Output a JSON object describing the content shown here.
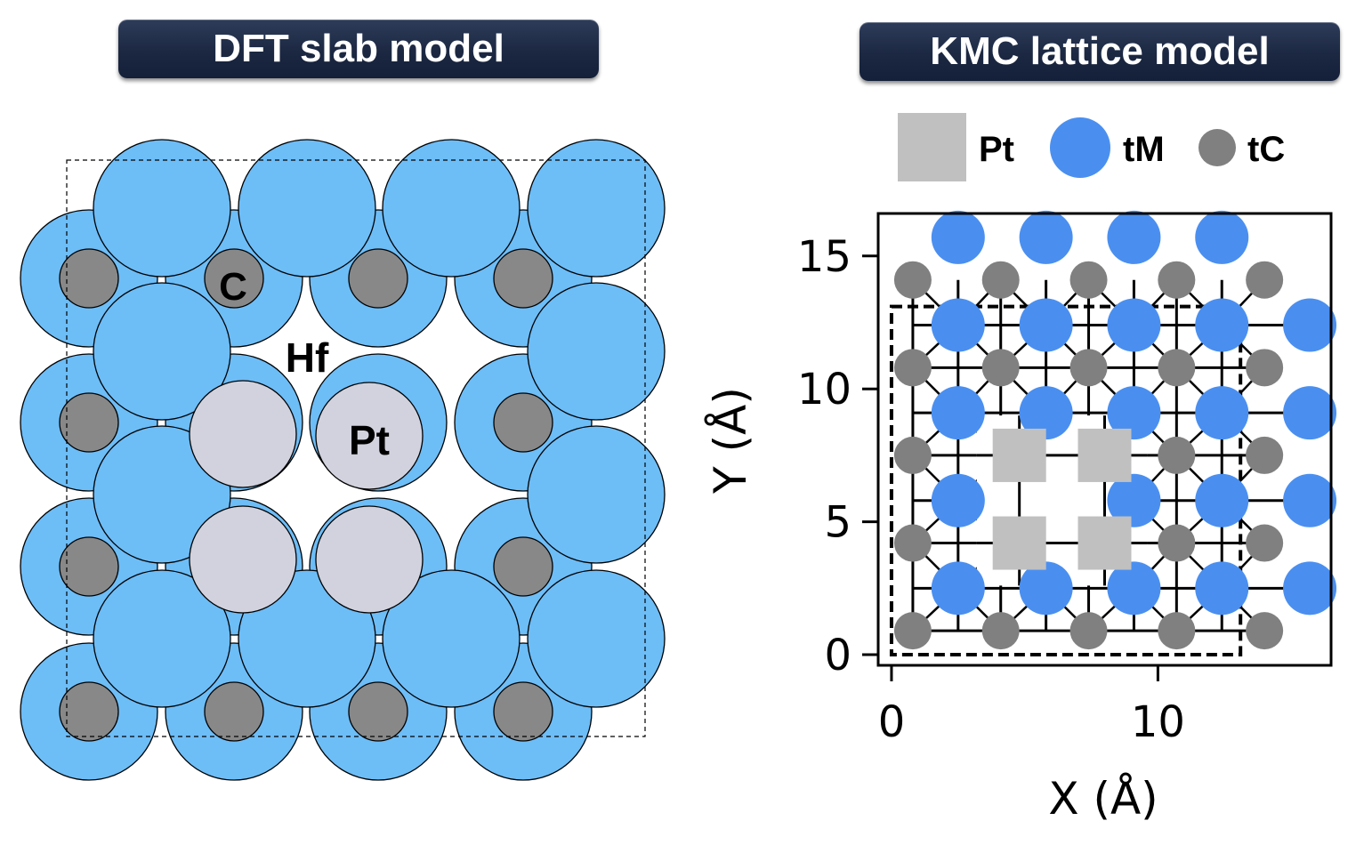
{
  "titles": {
    "left": "DFT slab model",
    "right": "KMC lattice model"
  },
  "slab": {
    "labels": {
      "c": "C",
      "hf": "Hf",
      "pt": "Pt"
    },
    "colors": {
      "hf": "#6dbdf7",
      "c": "#888888",
      "pt": "#d2d2de"
    }
  },
  "legend": {
    "items": [
      {
        "label": "Pt",
        "shape": "square",
        "color": "#c0c0c0"
      },
      {
        "label": "tM",
        "shape": "circle",
        "color": "#4a8ff0"
      },
      {
        "label": "tC",
        "shape": "circle",
        "color": "#808080"
      }
    ]
  },
  "chart_data": {
    "type": "scatter",
    "xlabel": "X (Å)",
    "ylabel": "Y (Å)",
    "xlim": [
      -0.5,
      16.5
    ],
    "ylim": [
      -0.4,
      16.6
    ],
    "xticks": [
      0,
      10
    ],
    "yticks": [
      0,
      5,
      10,
      15
    ],
    "series": [
      {
        "name": "tM",
        "color": "#4a8ff0",
        "marker": "circle",
        "points": [
          [
            2.5,
            15.7
          ],
          [
            5.8,
            15.7
          ],
          [
            9.1,
            15.7
          ],
          [
            12.4,
            15.7
          ],
          [
            2.5,
            12.4
          ],
          [
            5.8,
            12.4
          ],
          [
            9.1,
            12.4
          ],
          [
            12.4,
            12.4
          ],
          [
            15.7,
            12.4
          ],
          [
            2.5,
            9.1
          ],
          [
            5.8,
            9.1
          ],
          [
            9.1,
            9.1
          ],
          [
            12.4,
            9.1
          ],
          [
            15.7,
            9.1
          ],
          [
            2.5,
            5.8
          ],
          [
            9.1,
            5.8
          ],
          [
            12.4,
            5.8
          ],
          [
            15.7,
            5.8
          ],
          [
            2.5,
            2.5
          ],
          [
            5.8,
            2.5
          ],
          [
            9.1,
            2.5
          ],
          [
            12.4,
            2.5
          ],
          [
            15.7,
            2.5
          ]
        ]
      },
      {
        "name": "tC",
        "color": "#808080",
        "marker": "circle",
        "points": [
          [
            0.8,
            14.1
          ],
          [
            4.1,
            14.1
          ],
          [
            7.4,
            14.1
          ],
          [
            10.7,
            14.1
          ],
          [
            14.0,
            14.1
          ],
          [
            0.8,
            10.8
          ],
          [
            4.1,
            10.8
          ],
          [
            7.4,
            10.8
          ],
          [
            10.7,
            10.8
          ],
          [
            14.0,
            10.8
          ],
          [
            0.8,
            7.5
          ],
          [
            10.7,
            7.5
          ],
          [
            14.0,
            7.5
          ],
          [
            0.8,
            4.2
          ],
          [
            10.7,
            4.2
          ],
          [
            14.0,
            4.2
          ],
          [
            0.8,
            0.9
          ],
          [
            4.1,
            0.9
          ],
          [
            7.4,
            0.9
          ],
          [
            10.7,
            0.9
          ],
          [
            14.0,
            0.9
          ]
        ]
      },
      {
        "name": "Pt",
        "color": "#c0c0c0",
        "marker": "square",
        "points": [
          [
            4.8,
            7.5
          ],
          [
            8.0,
            7.5
          ],
          [
            4.8,
            4.2
          ],
          [
            8.0,
            4.2
          ]
        ]
      }
    ],
    "cell": {
      "x": [
        0,
        13.1
      ],
      "y": [
        0,
        13.1
      ]
    }
  }
}
